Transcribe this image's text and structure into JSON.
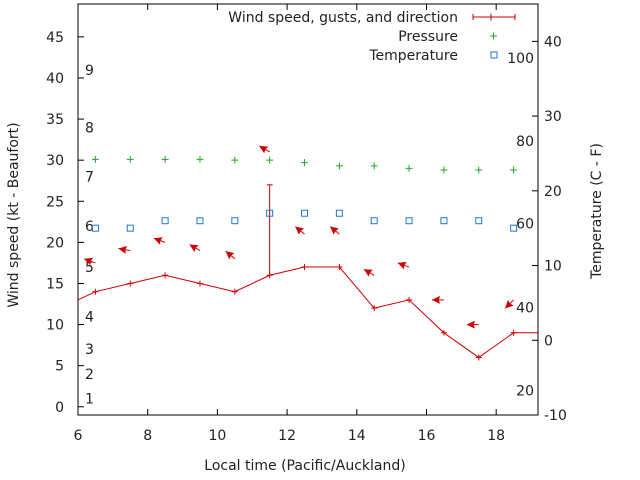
{
  "chart_data": {
    "type": "line",
    "title": "",
    "xlabel": "Local time (Pacific/Auckland)",
    "ylabel_left": "Wind speed (kt - Beaufort)",
    "ylabel_right": "Temperature (C - F)",
    "xlim": [
      6,
      19.2
    ],
    "ylim_left": [
      -1,
      49
    ],
    "ylim_right": [
      -10,
      45
    ],
    "x_ticks": [
      "6",
      "8",
      "10",
      "12",
      "14",
      "16",
      "18"
    ],
    "y_ticks_left": [
      "0",
      "5",
      "10",
      "15",
      "20",
      "25",
      "30",
      "35",
      "40",
      "45"
    ],
    "y_ticks_right": [
      "-10",
      "0",
      "10",
      "20",
      "30",
      "40"
    ],
    "beaufort_labels": [
      {
        "label": "1",
        "kt": 1
      },
      {
        "label": "2",
        "kt": 4
      },
      {
        "label": "3",
        "kt": 7
      },
      {
        "label": "4",
        "kt": 11
      },
      {
        "label": "5",
        "kt": 17
      },
      {
        "label": "6",
        "kt": 22
      },
      {
        "label": "7",
        "kt": 28
      },
      {
        "label": "8",
        "kt": 34
      },
      {
        "label": "9",
        "kt": 41
      }
    ],
    "fahrenheit_labels": [
      {
        "label": "20",
        "c": -6.7
      },
      {
        "label": "40",
        "c": 4.4
      },
      {
        "label": "60",
        "c": 15.6
      },
      {
        "label": "80",
        "c": 26.7
      },
      {
        "label": "100",
        "c": 37.8
      }
    ],
    "legend": {
      "position": "top-right",
      "entries": [
        "Wind speed, gusts, and direction",
        "Pressure",
        "Temperature"
      ]
    },
    "series": [
      {
        "name": "Wind speed, gusts, and direction",
        "color": "#cc0000",
        "x": [
          6,
          6.5,
          7.5,
          8.5,
          9.5,
          10.5,
          11.5,
          12.5,
          13.5,
          14.5,
          15.5,
          16.5,
          17.5,
          18.5,
          19.2
        ],
        "values": [
          13,
          14,
          15,
          16,
          15,
          14,
          16,
          17,
          17,
          12,
          13,
          9,
          6,
          9,
          9
        ],
        "gust": {
          "x": 11.5,
          "low": 16,
          "high": 27
        },
        "direction_arrows": [
          {
            "x": 6.5,
            "kt": 17.5,
            "angle": 200
          },
          {
            "x": 7.5,
            "kt": 19,
            "angle": 190
          },
          {
            "x": 8.5,
            "kt": 20,
            "angle": 200
          },
          {
            "x": 9.5,
            "kt": 19,
            "angle": 210
          },
          {
            "x": 10.5,
            "kt": 18,
            "angle": 220
          },
          {
            "x": 11.5,
            "kt": 31,
            "angle": 210
          },
          {
            "x": 12.5,
            "kt": 21,
            "angle": 220
          },
          {
            "x": 13.5,
            "kt": 21,
            "angle": 220
          },
          {
            "x": 14.5,
            "kt": 16,
            "angle": 210
          },
          {
            "x": 15.5,
            "kt": 17,
            "angle": 200
          },
          {
            "x": 16.5,
            "kt": 13,
            "angle": 180
          },
          {
            "x": 17.5,
            "kt": 10,
            "angle": 180
          },
          {
            "x": 18.5,
            "kt": 13,
            "angle": 135
          }
        ]
      },
      {
        "name": "Pressure",
        "color": "#22aa22",
        "x": [
          6.5,
          7.5,
          8.5,
          9.5,
          10.5,
          11.5,
          12.5,
          13.5,
          14.5,
          15.5,
          16.5,
          17.5,
          18.5
        ],
        "values": [
          30.1,
          30.1,
          30.1,
          30.1,
          30.0,
          30.0,
          29.7,
          29.3,
          29.3,
          29.0,
          28.8,
          28.8,
          28.8
        ]
      },
      {
        "name": "Temperature",
        "color": "#1f77d4",
        "x": [
          6.5,
          7.5,
          8.5,
          9.5,
          10.5,
          11.5,
          12.5,
          13.5,
          14.5,
          15.5,
          16.5,
          17.5,
          18.5
        ],
        "values": [
          15,
          15,
          16,
          16,
          16,
          17,
          17,
          17,
          16,
          16,
          16,
          16,
          15
        ]
      }
    ]
  }
}
